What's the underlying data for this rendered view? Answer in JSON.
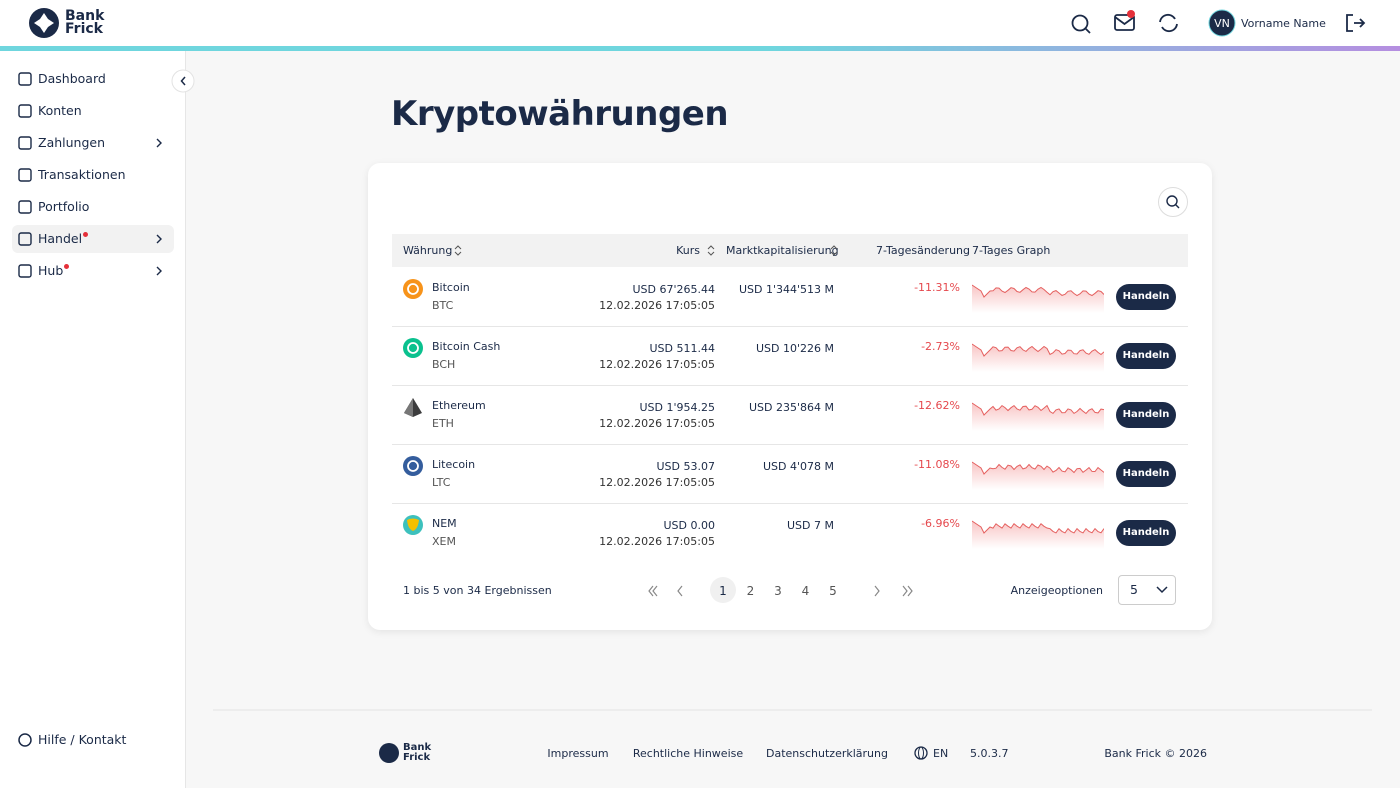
{
  "header": {
    "logo": [
      "Bank",
      "Frick"
    ],
    "user_initials": "VN",
    "user_name": "Vorname Name"
  },
  "sidebar": {
    "items": [
      {
        "label": "Dashboard",
        "has_submenu": false,
        "has_notification": false,
        "active": false
      },
      {
        "label": "Konten",
        "has_submenu": false,
        "has_notification": false,
        "active": false
      },
      {
        "label": "Zahlungen",
        "has_submenu": true,
        "has_notification": false,
        "active": false
      },
      {
        "label": "Transaktionen",
        "has_submenu": false,
        "has_notification": false,
        "active": false
      },
      {
        "label": "Portfolio",
        "has_submenu": false,
        "has_notification": false,
        "active": false
      },
      {
        "label": "Handel",
        "has_submenu": true,
        "has_notification": true,
        "active": true
      },
      {
        "label": "Hub",
        "has_submenu": true,
        "has_notification": true,
        "active": false
      }
    ],
    "help": "Hilfe / Kontakt"
  },
  "page": {
    "title": "Kryptowährungen"
  },
  "table": {
    "columns": [
      "Währung",
      "Kurs",
      "Marktkapitalisierung",
      "7-Tagesänderung",
      "7-Tages Graph"
    ],
    "rows": [
      {
        "name": "Bitcoin",
        "symbol": "BTC",
        "price": "USD 67'265.44",
        "date": "12.02.2026 17:05:05",
        "market_cap": "USD 1'344'513 M",
        "change": "-11.31%",
        "action": "Handeln"
      },
      {
        "name": "Bitcoin Cash",
        "symbol": "BCH",
        "price": "USD 511.44",
        "date": "12.02.2026 17:05:05",
        "market_cap": "USD 10'226 M",
        "change": "-2.73%",
        "action": "Handeln"
      },
      {
        "name": "Ethereum",
        "symbol": "ETH",
        "price": "USD 1'954.25",
        "date": "12.02.2026 17:05:05",
        "market_cap": "USD 235'864 M",
        "change": "-12.62%",
        "action": "Handeln"
      },
      {
        "name": "Litecoin",
        "symbol": "LTC",
        "price": "USD 53.07",
        "date": "12.02.2026 17:05:05",
        "market_cap": "USD 4'078 M",
        "change": "-11.08%",
        "action": "Handeln"
      },
      {
        "name": "NEM",
        "symbol": "XEM",
        "price": "USD 0.00",
        "date": "12.02.2026 17:05:05",
        "market_cap": "USD 7 M",
        "change": "-6.96%",
        "action": "Handeln"
      }
    ]
  },
  "pagination": {
    "summary": "1 bis 5 von 34 Ergebnissen",
    "pages": [
      "1",
      "2",
      "3",
      "4",
      "5"
    ],
    "options_label": "Anzeigeoptionen",
    "page_size": "5"
  },
  "footer": {
    "logo": [
      "Bank",
      "Frick"
    ],
    "links": [
      "Impressum",
      "Rechtliche Hinweise",
      "Datenschutzerklärung"
    ],
    "language": "EN",
    "version": "5.0.3.7",
    "copyright": "Bank Frick © 2026"
  }
}
